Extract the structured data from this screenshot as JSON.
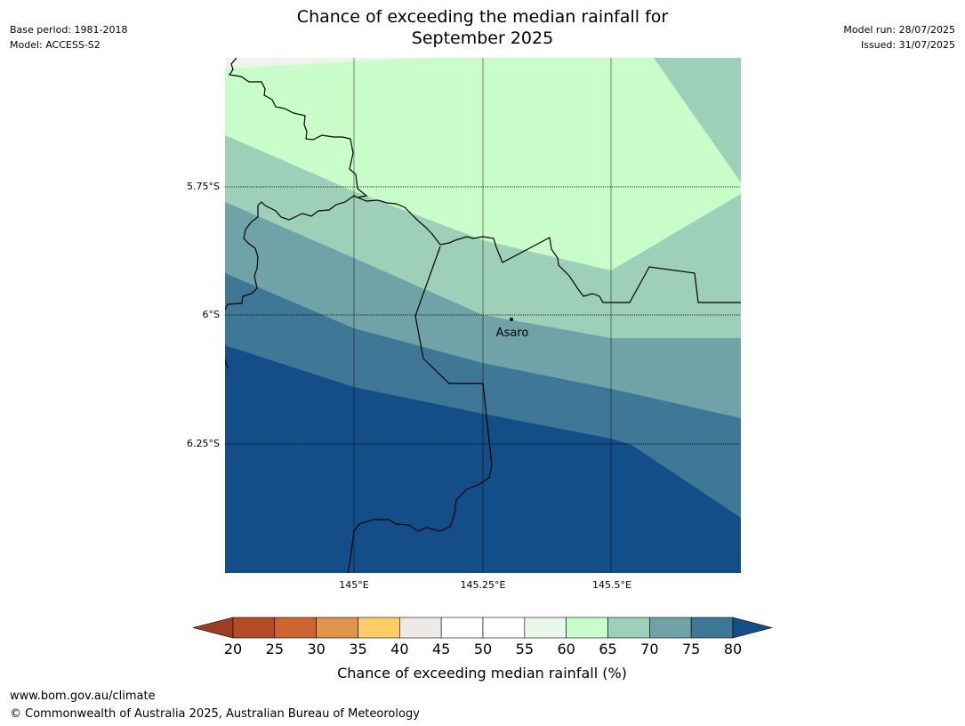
{
  "header": {
    "title_line1": "Chance of exceeding the median rainfall for",
    "title_line2": "September 2025",
    "base_period": "Base period: 1981-2018",
    "model": "Model: ACCESS-S2",
    "model_run": "Model run: 28/07/2025",
    "issued": "Issued: 31/07/2025"
  },
  "map": {
    "lat_labels": [
      "5.75°S",
      "6°S",
      "6.25°S"
    ],
    "lon_labels": [
      "145°E",
      "145.25°E",
      "145.5°E"
    ],
    "place_name": "Asaro",
    "zone_colors": [
      "#ecf4ec",
      "#c8fcc8",
      "#9dcfb9",
      "#6fa3a7",
      "#3f7797",
      "#144e89"
    ]
  },
  "colorbar": {
    "ticks": [
      "20",
      "25",
      "30",
      "35",
      "40",
      "45",
      "50",
      "55",
      "60",
      "65",
      "70",
      "75",
      "80"
    ],
    "colors": [
      "#9e3d22",
      "#b44a26",
      "#cd6531",
      "#e29548",
      "#ffcc66",
      "#ede9e5",
      "#ffffff",
      "#ffffff",
      "#e9f7e9",
      "#c8fcc8",
      "#9dcfb9",
      "#6fa3a7",
      "#3f7797",
      "#144e89"
    ],
    "label": "Chance of exceeding median rainfall (%)"
  },
  "footer": {
    "url": "www.bom.gov.au/climate",
    "copyright": "© Commonwealth of Australia 2025, Australian Bureau of Meteorology"
  }
}
